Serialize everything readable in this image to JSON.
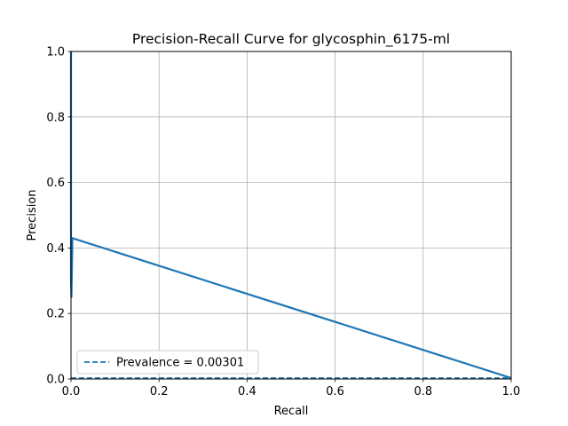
{
  "chart_data": {
    "type": "line",
    "title": "Precision-Recall Curve for glycosphin_6175-ml",
    "xlabel": "Recall",
    "ylabel": "Precision",
    "xlim": [
      0.0,
      1.0
    ],
    "ylim": [
      0.0,
      1.0
    ],
    "xticks": [
      "0.0",
      "0.2",
      "0.4",
      "0.6",
      "0.8",
      "1.0"
    ],
    "yticks": [
      "0.0",
      "0.2",
      "0.4",
      "0.6",
      "0.8",
      "1.0"
    ],
    "grid": true,
    "legend_position": "lower-left",
    "series": [
      {
        "color": "#1f77b4",
        "style": "solid",
        "x": [
          0.0,
          0.0,
          0.0,
          0.0,
          0.0,
          0.001,
          0.002,
          0.003,
          0.003,
          1.0
        ],
        "y": [
          1.0,
          0.9,
          0.7,
          0.5,
          0.3,
          0.25,
          0.33,
          0.4,
          0.43,
          0.003
        ]
      },
      {
        "name": "Prevalence = 0.00301",
        "color": "#1f77b4",
        "style": "dashed",
        "x": [
          0.0,
          1.0
        ],
        "y": [
          0.00301,
          0.00301
        ]
      }
    ],
    "legend": [
      "Prevalence = 0.00301"
    ]
  }
}
